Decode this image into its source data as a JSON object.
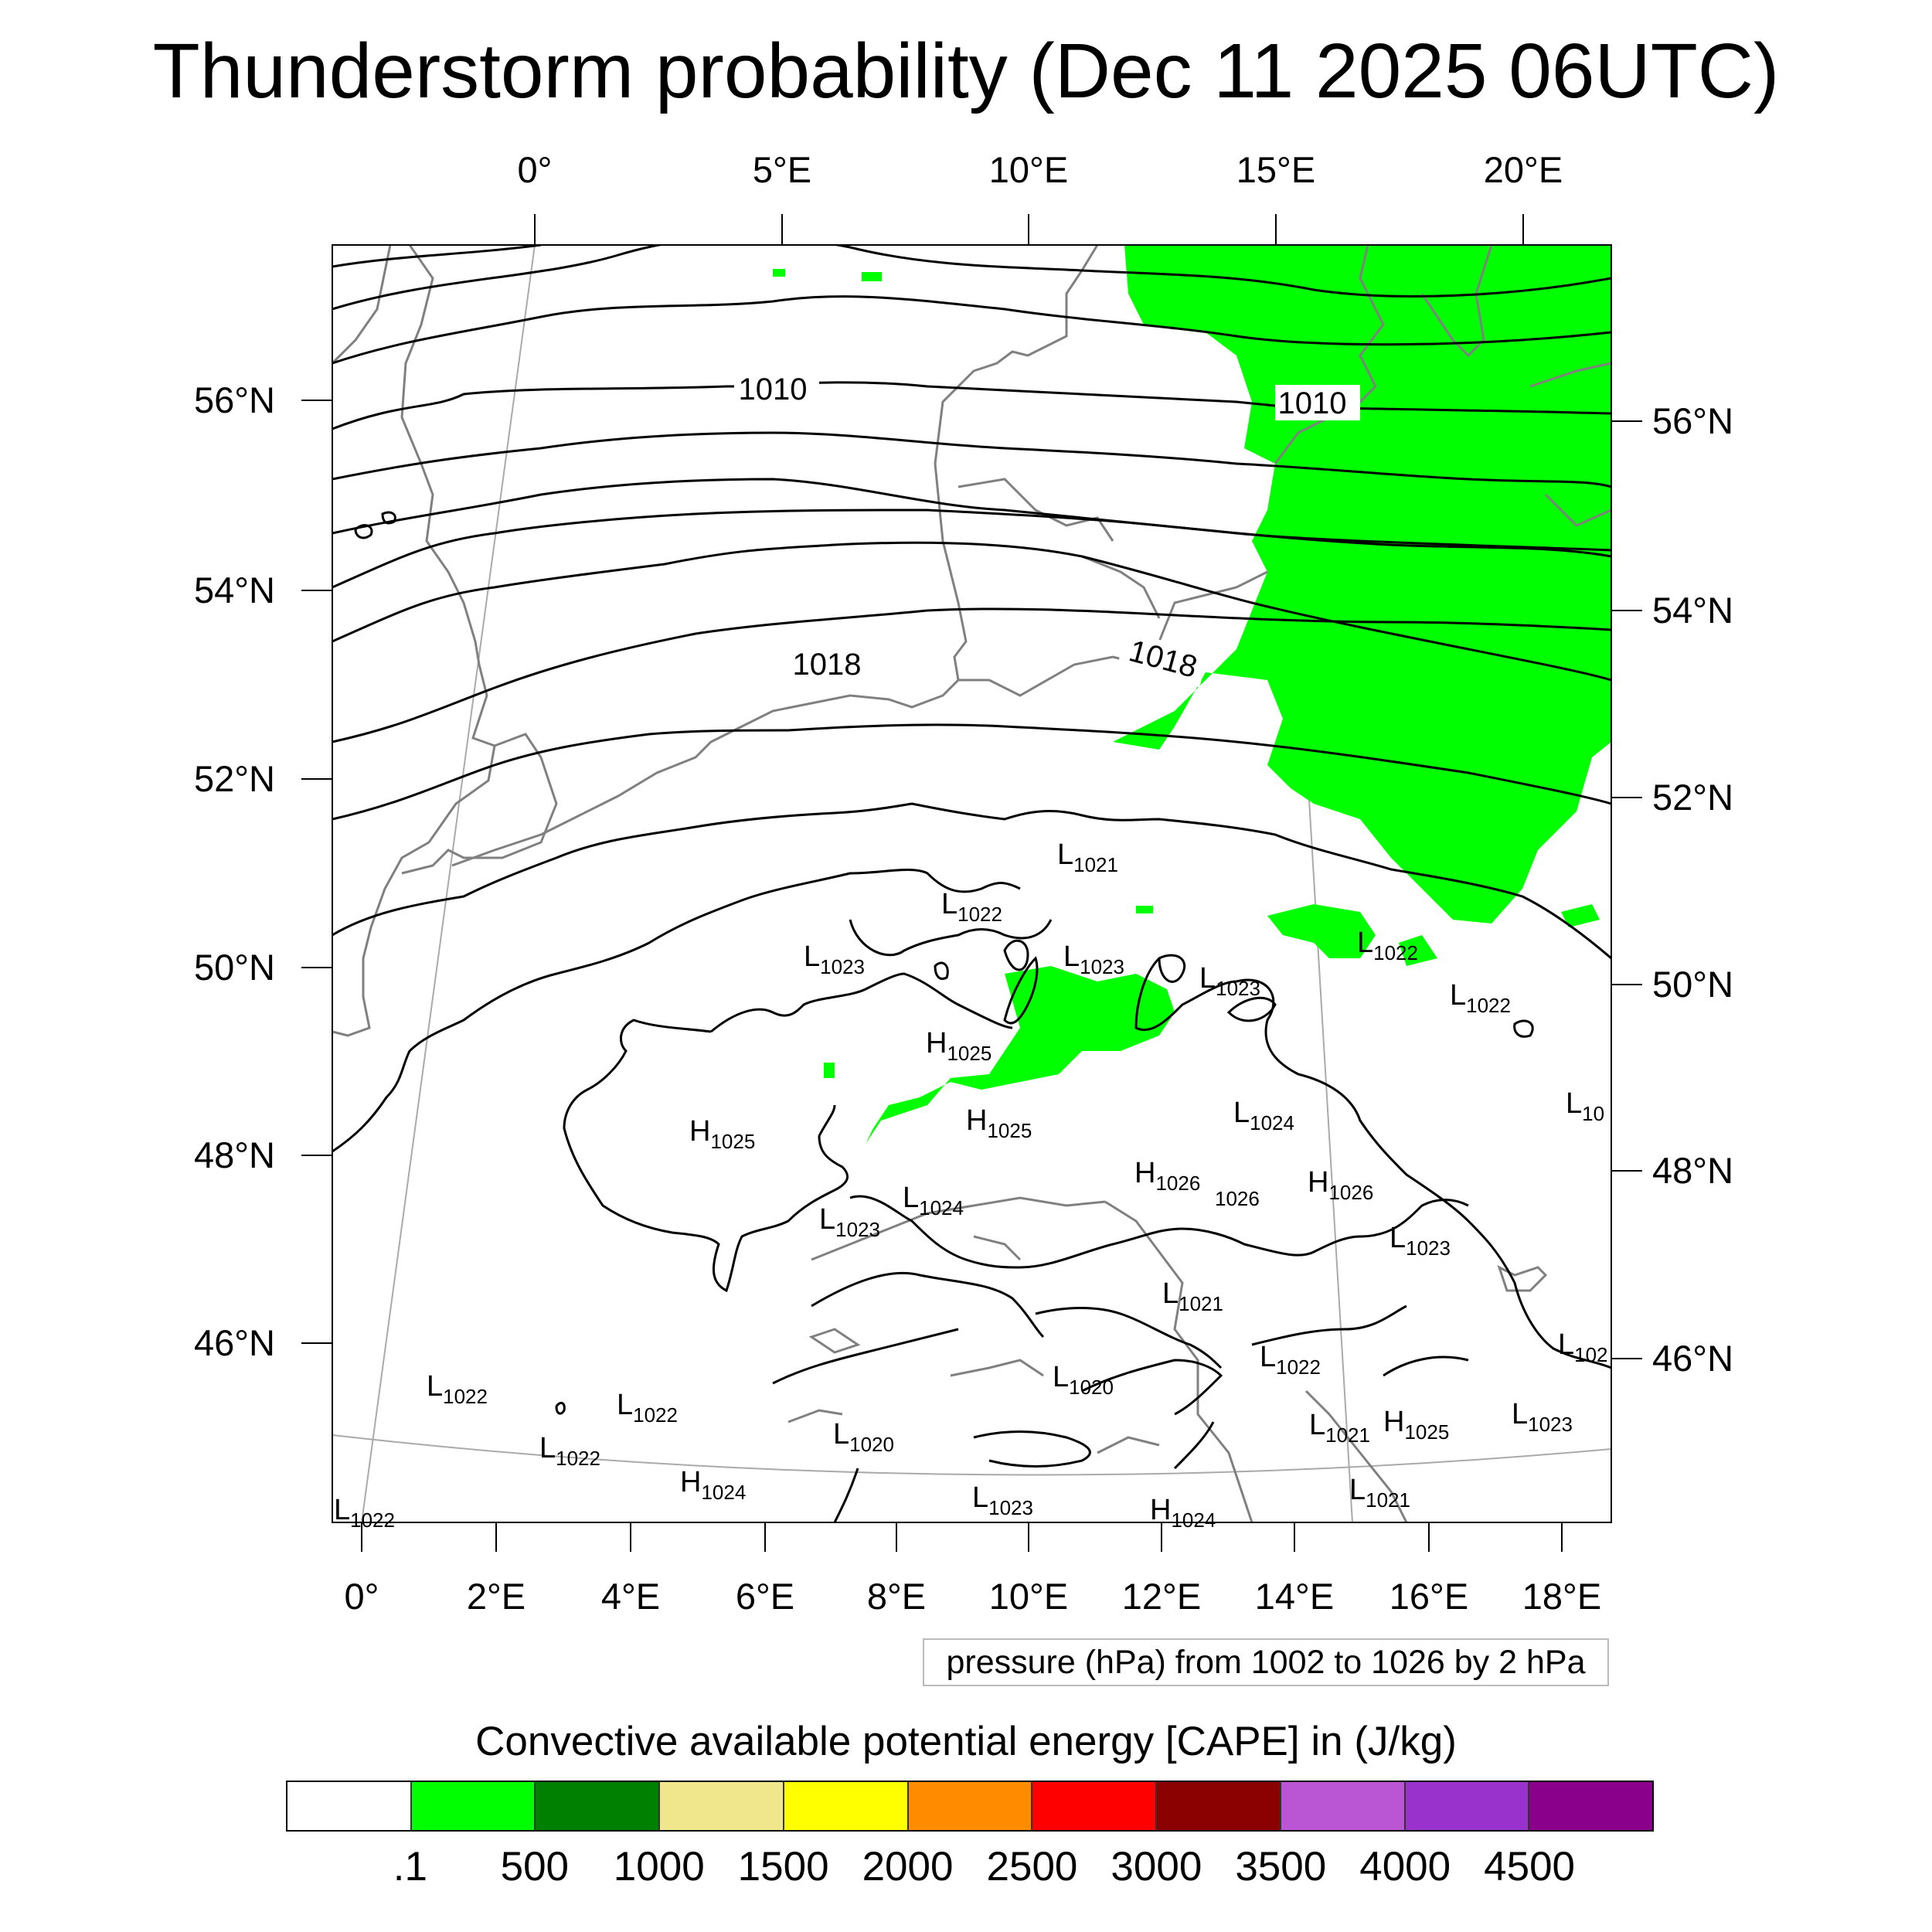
{
  "title": "Thunderstorm probability (Dec 11 2025 06UTC)",
  "map": {
    "top_lon_labels": [
      "0°",
      "5°E",
      "10°E",
      "15°E",
      "20°E"
    ],
    "bottom_lon_labels": [
      "0°",
      "2°E",
      "4°E",
      "6°E",
      "8°E",
      "10°E",
      "12°E",
      "14°E",
      "16°E",
      "18°E"
    ],
    "left_lat_labels": [
      "56°N",
      "54°N",
      "52°N",
      "50°N",
      "48°N",
      "46°N"
    ],
    "right_lat_labels": [
      "56°N",
      "54°N",
      "52°N",
      "50°N",
      "48°N",
      "46°N"
    ],
    "isobar_labels": [
      "1010",
      "1010",
      "1018",
      "1018"
    ],
    "pressure_centers": [
      {
        "letter": "L",
        "value": "1021"
      },
      {
        "letter": "L",
        "value": "1022"
      },
      {
        "letter": "L",
        "value": "1023"
      },
      {
        "letter": "L",
        "value": "1023"
      },
      {
        "letter": "L",
        "value": "1023"
      },
      {
        "letter": "L",
        "value": "1022"
      },
      {
        "letter": "L",
        "value": "1022"
      },
      {
        "letter": "H",
        "value": "1025"
      },
      {
        "letter": "H",
        "value": "1025"
      },
      {
        "letter": "H",
        "value": "1025"
      },
      {
        "letter": "L",
        "value": "1024"
      },
      {
        "letter": "L",
        "value": "10"
      },
      {
        "letter": "H",
        "value": "1026"
      },
      {
        "letter": "",
        "value": "1026"
      },
      {
        "letter": "H",
        "value": "1026"
      },
      {
        "letter": "L",
        "value": "1024"
      },
      {
        "letter": "L",
        "value": "1023"
      },
      {
        "letter": "L",
        "value": "1023"
      },
      {
        "letter": "L",
        "value": "1021"
      },
      {
        "letter": "L",
        "value": "102"
      },
      {
        "letter": "L",
        "value": "1020"
      },
      {
        "letter": "L",
        "value": "1022"
      },
      {
        "letter": "L",
        "value": "1022"
      },
      {
        "letter": "L",
        "value": "1022"
      },
      {
        "letter": "L",
        "value": "1022"
      },
      {
        "letter": "L",
        "value": "1020"
      },
      {
        "letter": "L",
        "value": "1021"
      },
      {
        "letter": "H",
        "value": "1025"
      },
      {
        "letter": "L",
        "value": "1023"
      },
      {
        "letter": "H",
        "value": "1024"
      },
      {
        "letter": "L",
        "value": "1023"
      },
      {
        "letter": "H",
        "value": "1024"
      },
      {
        "letter": "L",
        "value": "1021"
      },
      {
        "letter": "L",
        "value": "1022"
      }
    ]
  },
  "pressure_note": "pressure (hPa) from 1002 to 1026 by 2 hPa",
  "colorbar": {
    "title": "Convective available potential energy [CAPE] in (J/kg)",
    "colors": [
      "#ffffff",
      "#00ff00",
      "#008000",
      "#f0e68c",
      "#ffff00",
      "#ff8c00",
      "#ff0000",
      "#8b0000",
      "#ba55d3",
      "#9932cc",
      "#8b008b"
    ],
    "tick_labels": [
      ".1",
      "500",
      "1000",
      "1500",
      "2000",
      "2500",
      "3000",
      "3500",
      "4000",
      "4500"
    ]
  }
}
